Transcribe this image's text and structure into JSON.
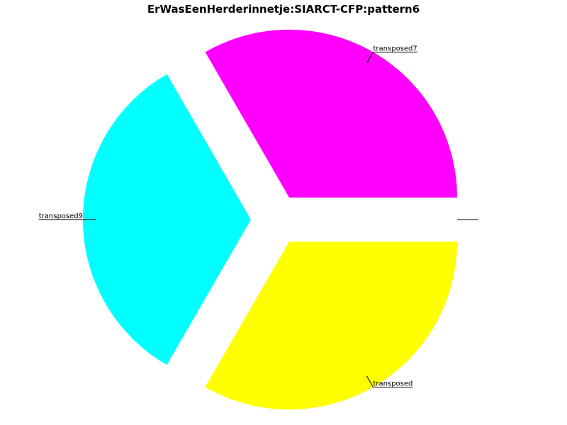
{
  "chart_data": {
    "type": "pie",
    "title": "ErWasEenHerderinnetje:SIARCT-CFP:pattern6",
    "slices": [
      {
        "label": "",
        "value": 0,
        "color": "#ffffff"
      },
      {
        "label": "transposed7",
        "value": 33.33,
        "color": "#ff00ff"
      },
      {
        "label": "transposed9",
        "value": 33.33,
        "color": "#00ffff"
      },
      {
        "label": "transposed",
        "value": 33.34,
        "color": "#ffff00"
      }
    ],
    "start_angle_deg": 0,
    "direction": "counterclockwise",
    "exploded": true,
    "legend": "none"
  }
}
